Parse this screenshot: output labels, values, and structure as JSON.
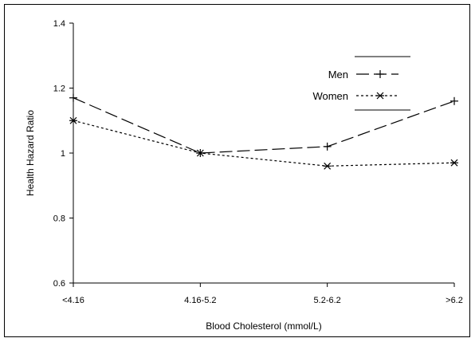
{
  "chart_data": {
    "type": "line",
    "categories": [
      "<4.16",
      "4.16-5.2",
      "5.2-6.2",
      ">6.2"
    ],
    "xlabel": "Blood Cholesterol (mmol/L)",
    "ylabel": "Health Hazard Ratio",
    "ylim": [
      0.6,
      1.4
    ],
    "yticks": [
      0.6,
      0.8,
      1.0,
      1.2,
      1.4
    ],
    "ytick_labels": [
      "0.6",
      "0.8",
      "1",
      "1.2",
      "1.4"
    ],
    "grid": false,
    "legend_position": "top-right",
    "series": [
      {
        "name": "Men",
        "values": [
          1.17,
          1.0,
          1.02,
          1.16
        ],
        "color": "#000000",
        "style": "dashed-long",
        "marker": "plus"
      },
      {
        "name": "Women",
        "values": [
          1.1,
          1.0,
          0.96,
          0.97
        ],
        "color": "#000000",
        "style": "dotted",
        "marker": "star"
      }
    ]
  }
}
